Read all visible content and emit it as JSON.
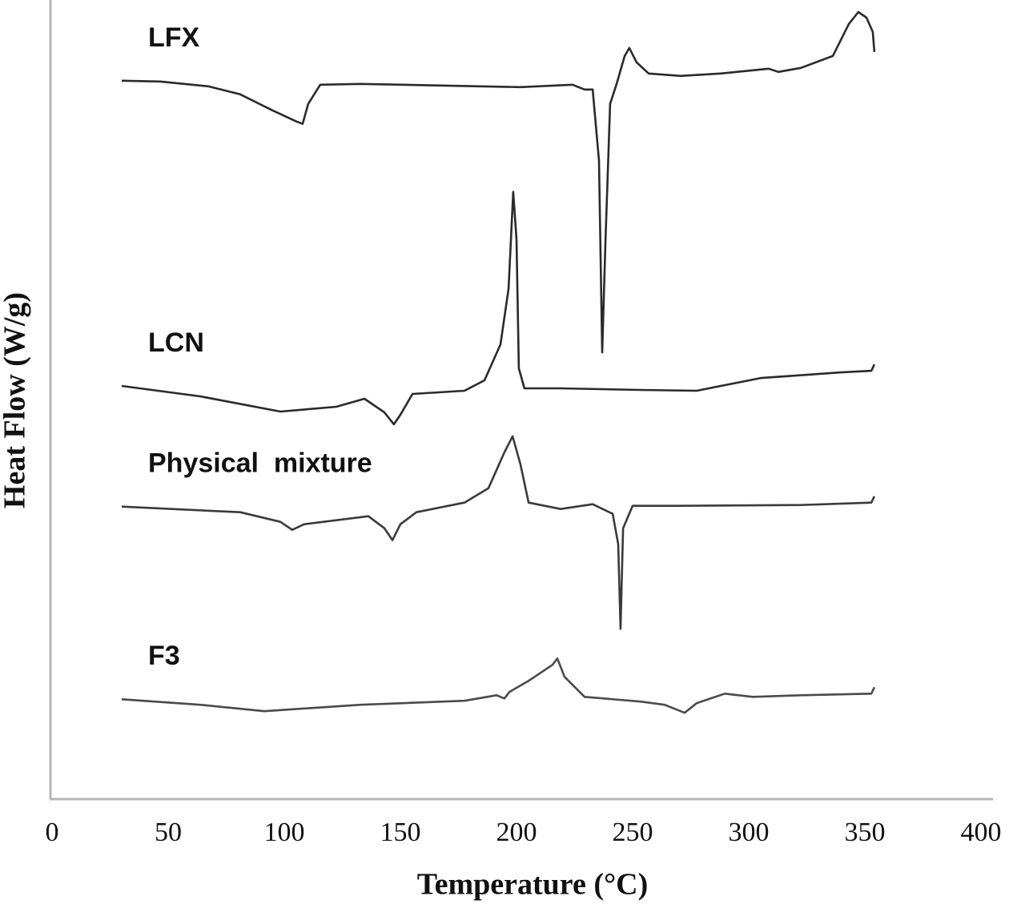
{
  "chart_data": {
    "type": "line",
    "xlabel": "Temperature (°C)",
    "ylabel": "Heat Flow (W/g)",
    "xlim": [
      0,
      400
    ],
    "xticks": [
      0,
      50,
      100,
      150,
      200,
      250,
      300,
      350,
      400
    ],
    "ylim": [
      0,
      100
    ],
    "grid": false,
    "series": [
      {
        "name": "LFX",
        "color": "#2a2a2a",
        "x": [
          30,
          46.6,
          67.2,
          81,
          94.8,
          105.2,
          107.9,
          110.3,
          115.5,
          132.8,
          167.2,
          201.7,
          224.1,
          229.3,
          232.8,
          235.5,
          236.9,
          238.3,
          240.3,
          243.1,
          246.6,
          248.6,
          251.7,
          256.9,
          270.7,
          287.9,
          308.6,
          312.8,
          322.4,
          336.2,
          343.1,
          347.2,
          350.7,
          353.4,
          354.1
        ],
        "values": [
          89.9,
          89.8,
          89.2,
          88.2,
          86.2,
          84.8,
          84.5,
          87.0,
          89.4,
          89.5,
          89.3,
          89.1,
          89.4,
          88.8,
          88.8,
          79.9,
          55.9,
          69.9,
          87.0,
          89.5,
          93.0,
          94.0,
          92.2,
          90.8,
          90.5,
          90.8,
          91.4,
          91.0,
          91.5,
          93.0,
          97.0,
          98.5,
          97.8,
          96.0,
          93.5
        ]
      },
      {
        "name": "LCN",
        "color": "#2a2a2a",
        "x": [
          30,
          63.8,
          98.3,
          122.4,
          134.5,
          143.1,
          147.2,
          150,
          155.2,
          177.6,
          186.2,
          193.1,
          196.6,
          198.6,
          200,
          201,
          203.4,
          219,
          253.4,
          277.6,
          305.2,
          339.7,
          352.8,
          354.1
        ],
        "values": [
          51.7,
          50.4,
          48.5,
          49.1,
          50.1,
          48.4,
          46.9,
          48.1,
          50.7,
          51.1,
          52.4,
          56.9,
          63.9,
          76.0,
          70.0,
          53.9,
          51.4,
          51.4,
          51.2,
          51.1,
          52.7,
          53.4,
          53.6,
          54.4
        ]
      },
      {
        "name": "Physical  mixture",
        "color": "#3a3a3a",
        "x": [
          30,
          81,
          98.3,
          103.4,
          108.6,
          136.2,
          143.1,
          146.6,
          150,
          156.9,
          177.6,
          187.9,
          194.8,
          198.3,
          201.7,
          205.2,
          219,
          232.8,
          241.4,
          243.8,
          244.8,
          245.9,
          250,
          270.7,
          322.4,
          352.8,
          354.1
        ],
        "values": [
          36.6,
          35.9,
          34.7,
          33.7,
          34.4,
          35.4,
          33.9,
          32.4,
          34.4,
          35.9,
          37.1,
          38.9,
          43.4,
          45.4,
          41.9,
          37.1,
          36.3,
          36.9,
          35.7,
          31.9,
          21.3,
          33.9,
          36.7,
          36.7,
          36.8,
          37.1,
          37.9
        ]
      },
      {
        "name": "F3",
        "color": "#4a4a4a",
        "x": [
          30,
          63.8,
          91.4,
          132.8,
          177.6,
          191.4,
          194.8,
          196.9,
          205.2,
          215.5,
          217.6,
          220.7,
          229.3,
          253.4,
          263.8,
          272.4,
          277.6,
          289.7,
          301.7,
          322.4,
          352.8,
          354.1
        ],
        "values": [
          12.5,
          11.8,
          11.0,
          11.8,
          12.3,
          13.0,
          12.6,
          13.4,
          14.8,
          16.8,
          17.6,
          15.3,
          12.8,
          12.2,
          11.8,
          10.8,
          12.0,
          13.2,
          12.8,
          13.0,
          13.2,
          14.0
        ]
      }
    ]
  }
}
